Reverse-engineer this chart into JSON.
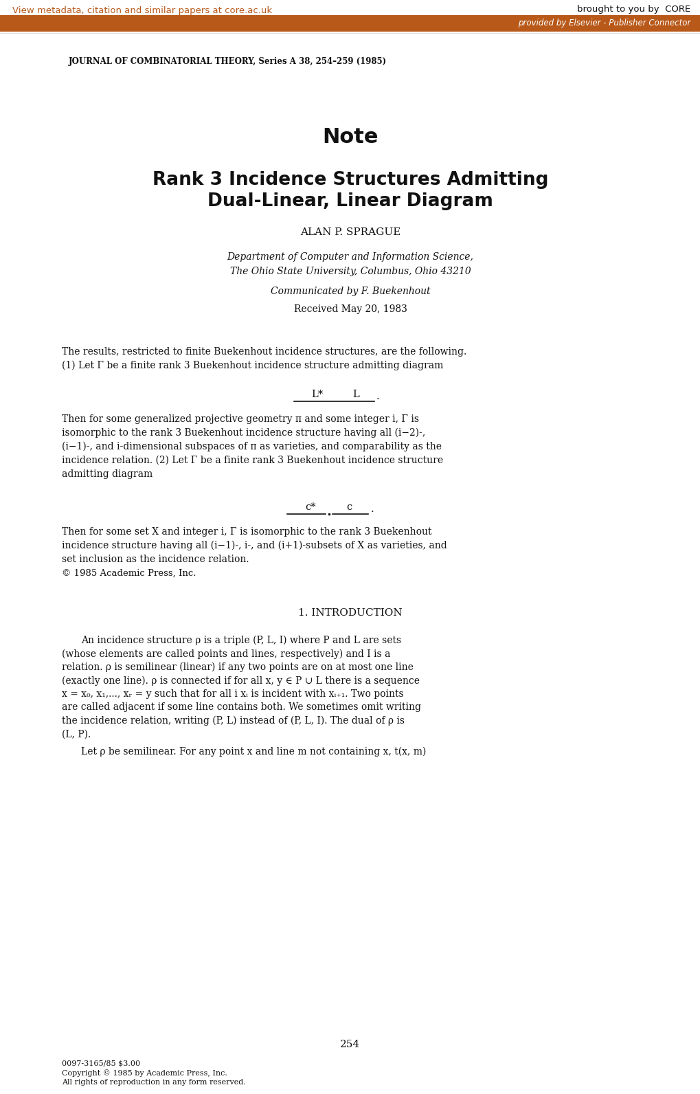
{
  "bg_color": "#ffffff",
  "header_bar_color": "#b8591a",
  "header_text_color": "#b8591a",
  "header_bar_text_color": "#ffffff",
  "header_link_text": "View metadata, citation and similar papers at core.ac.uk",
  "header_right_text": "brought to you by  CORE",
  "header_bar_text": "provided by Elsevier - Publisher Connector",
  "journal_line": "JOURNAL OF COMBINATORIAL THEORY, Series A 38, 254–259 (1985)",
  "note_title": "Note",
  "paper_title_line1": "Rank 3 Incidence Structures Admitting",
  "paper_title_line2": "Dual-Linear, Linear Diagram",
  "author": "ALAN P. SPRAGUE",
  "affil1": "Department of Computer and Information Science,",
  "affil2": "The Ohio State University, Columbus, Ohio 43210",
  "communicated": "Communicated by F. Buekenhout",
  "received": "Received May 20, 1983",
  "abstract_line1": "The results, restricted to finite Buekenhout incidence structures, are the following.",
  "abstract_line2": "(1) Let Γ be a finite rank 3 Buekenhout incidence structure admitting diagram",
  "diagram1_left": "L*",
  "diagram1_right": "L",
  "abstract_after1_line1": "Then for some generalized projective geometry π and some integer i, Γ is",
  "abstract_after1_line2": "isomorphic to the rank 3 Buekenhout incidence structure having all (i−2)-,",
  "abstract_after1_line3": "(i−1)-, and i-dimensional subspaces of π as varieties, and comparability as the",
  "abstract_after1_line4": "incidence relation. (2) Let Γ be a finite rank 3 Buekenhout incidence structure",
  "abstract_after1_line5": "admitting diagram",
  "diagram2_left": "c*",
  "diagram2_right": "c",
  "abstract_after2_line1": "Then for some set X and integer i, Γ is isomorphic to the rank 3 Buekenhout",
  "abstract_after2_line2": "incidence structure having all (i−1)-, i-, and (i+1)-subsets of X as varieties, and",
  "abstract_after2_line3": "set inclusion as the incidence relation.",
  "abstract_after2_line4": "© 1985 Academic Press, Inc.",
  "section_title": "1. INTRODUCTION",
  "intro_para1_line1": "An incidence structure ρ is a triple (P, L, I) where P and L are sets",
  "intro_para1_line2": "(whose elements are called points and lines, respectively) and I is a",
  "intro_para1_line3": "relation. ρ is semilinear (linear) if any two points are on at most one line",
  "intro_para1_line4": "(exactly one line). ρ is connected if for all x, y ∈ P ∪ L there is a sequence",
  "intro_para1_line5": "x = x₀, x₁,..., xᵣ = y such that for all i xᵢ is incident with xᵢ₊₁. Two points",
  "intro_para1_line6": "are called adjacent if some line contains both. We sometimes omit writing",
  "intro_para1_line7": "the incidence relation, writing (P, L) instead of (P, L, I). The dual of ρ is",
  "intro_para1_line8": "(L, P).",
  "intro_para2_line1": "Let ρ be semilinear. For any point x and line m not containing x, t(x, m)",
  "page_number": "254",
  "footer_line1": "0097-3165/85 $3.00",
  "footer_line2": "Copyright © 1985 by Academic Press, Inc.",
  "footer_line3": "All rights of reproduction in any form reserved."
}
